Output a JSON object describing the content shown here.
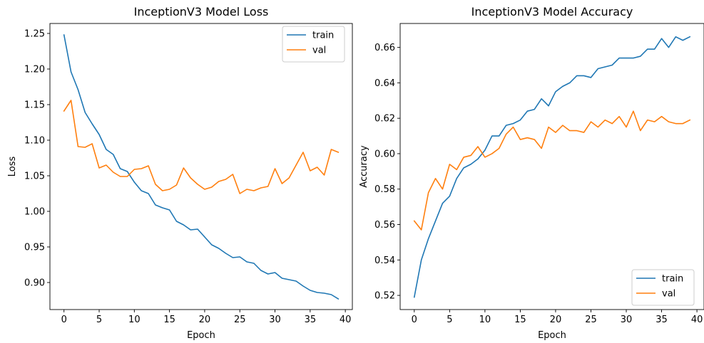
{
  "chart_data": [
    {
      "type": "line",
      "title": "InceptionV3 Model Loss",
      "xlabel": "Epoch",
      "ylabel": "Loss",
      "xlim": [
        -2,
        41
      ],
      "ylim": [
        0.862,
        1.264
      ],
      "xticks": [
        0,
        5,
        10,
        15,
        20,
        25,
        30,
        35,
        40
      ],
      "xtick_labels": [
        "0",
        "5",
        "10",
        "15",
        "20",
        "25",
        "30",
        "35",
        "40"
      ],
      "yticks": [
        0.9,
        0.95,
        1.0,
        1.05,
        1.1,
        1.15,
        1.2,
        1.25
      ],
      "ytick_labels": [
        "0.90",
        "0.95",
        "1.00",
        "1.05",
        "1.10",
        "1.15",
        "1.20",
        "1.25"
      ],
      "grid": false,
      "legend_position": "upper-right",
      "x": [
        0,
        1,
        2,
        3,
        4,
        5,
        6,
        7,
        8,
        9,
        10,
        11,
        12,
        13,
        14,
        15,
        16,
        17,
        18,
        19,
        20,
        21,
        22,
        23,
        24,
        25,
        26,
        27,
        28,
        29,
        30,
        31,
        32,
        33,
        34,
        35,
        36,
        37,
        38,
        39
      ],
      "series": [
        {
          "name": "train",
          "color": "#1f77b4",
          "values": [
            1.248,
            1.196,
            1.171,
            1.139,
            1.123,
            1.108,
            1.087,
            1.08,
            1.06,
            1.056,
            1.041,
            1.029,
            1.025,
            1.009,
            1.005,
            1.002,
            0.986,
            0.981,
            0.974,
            0.975,
            0.964,
            0.953,
            0.948,
            0.941,
            0.935,
            0.936,
            0.929,
            0.927,
            0.917,
            0.912,
            0.914,
            0.906,
            0.904,
            0.902,
            0.895,
            0.889,
            0.886,
            0.885,
            0.883,
            0.877
          ]
        },
        {
          "name": "val",
          "color": "#ff7f0e",
          "values": [
            1.141,
            1.156,
            1.091,
            1.09,
            1.095,
            1.061,
            1.065,
            1.055,
            1.049,
            1.049,
            1.059,
            1.06,
            1.064,
            1.038,
            1.029,
            1.031,
            1.037,
            1.061,
            1.047,
            1.038,
            1.031,
            1.034,
            1.042,
            1.045,
            1.052,
            1.025,
            1.031,
            1.029,
            1.033,
            1.035,
            1.06,
            1.039,
            1.047,
            1.065,
            1.083,
            1.057,
            1.062,
            1.051,
            1.087,
            1.083
          ]
        }
      ]
    },
    {
      "type": "line",
      "title": "InceptionV3 Model Accuracy",
      "xlabel": "Epoch",
      "ylabel": "Accuracy",
      "xlim": [
        -2,
        41
      ],
      "ylim": [
        0.512,
        0.6735
      ],
      "xticks": [
        0,
        5,
        10,
        15,
        20,
        25,
        30,
        35,
        40
      ],
      "xtick_labels": [
        "0",
        "5",
        "10",
        "15",
        "20",
        "25",
        "30",
        "35",
        "40"
      ],
      "yticks": [
        0.52,
        0.54,
        0.56,
        0.58,
        0.6,
        0.62,
        0.64,
        0.66
      ],
      "ytick_labels": [
        "0.52",
        "0.54",
        "0.56",
        "0.58",
        "0.60",
        "0.62",
        "0.64",
        "0.66"
      ],
      "grid": false,
      "legend_position": "lower-right",
      "x": [
        0,
        1,
        2,
        3,
        4,
        5,
        6,
        7,
        8,
        9,
        10,
        11,
        12,
        13,
        14,
        15,
        16,
        17,
        18,
        19,
        20,
        21,
        22,
        23,
        24,
        25,
        26,
        27,
        28,
        29,
        30,
        31,
        32,
        33,
        34,
        35,
        36,
        37,
        38,
        39
      ],
      "series": [
        {
          "name": "train",
          "color": "#1f77b4",
          "values": [
            0.519,
            0.54,
            0.552,
            0.562,
            0.572,
            0.576,
            0.586,
            0.592,
            0.594,
            0.597,
            0.602,
            0.61,
            0.61,
            0.616,
            0.617,
            0.619,
            0.624,
            0.625,
            0.631,
            0.627,
            0.635,
            0.638,
            0.64,
            0.644,
            0.644,
            0.643,
            0.648,
            0.649,
            0.65,
            0.654,
            0.654,
            0.654,
            0.655,
            0.659,
            0.659,
            0.665,
            0.66,
            0.666,
            0.664,
            0.666
          ]
        },
        {
          "name": "val",
          "color": "#ff7f0e",
          "values": [
            0.562,
            0.557,
            0.578,
            0.586,
            0.58,
            0.594,
            0.591,
            0.598,
            0.599,
            0.604,
            0.598,
            0.6,
            0.603,
            0.611,
            0.615,
            0.608,
            0.609,
            0.608,
            0.603,
            0.615,
            0.612,
            0.616,
            0.613,
            0.613,
            0.612,
            0.618,
            0.615,
            0.619,
            0.617,
            0.621,
            0.615,
            0.624,
            0.613,
            0.619,
            0.618,
            0.621,
            0.618,
            0.617,
            0.617,
            0.619
          ]
        }
      ]
    }
  ]
}
